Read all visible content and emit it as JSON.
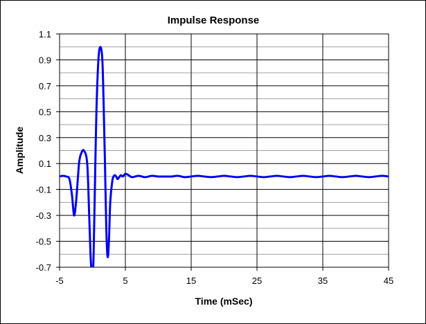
{
  "chart_data": {
    "type": "line",
    "title": "Impulse  Response",
    "xlabel": "Time (mSec)",
    "ylabel": "Amplitude",
    "xlim": [
      -5,
      45
    ],
    "ylim": [
      -0.7,
      1.1
    ],
    "x_ticks": [
      "-5",
      "5",
      "15",
      "25",
      "35",
      "45"
    ],
    "y_ticks": [
      "1.1",
      "0.9",
      "0.7",
      "0.5",
      "0.3",
      "0.1",
      "-0.1",
      "-0.3",
      "-0.5",
      "-0.7"
    ],
    "grid": true,
    "legend": "none",
    "series_color": "#0000ee",
    "series": [
      {
        "x": [
          -5,
          -4.5,
          -4,
          -3.5,
          -3.1,
          -2.8,
          -2.5,
          -2.2,
          -2.0,
          -1.7,
          -1.3,
          -0.8,
          -0.5,
          -0.3,
          -0.1,
          0.1,
          0.25,
          0.4,
          0.6,
          0.9,
          1.2,
          1.5,
          1.7,
          1.9,
          2.1,
          2.3,
          2.5,
          2.7,
          3.0,
          3.2,
          3.4,
          3.6,
          3.8,
          4.0,
          4.3,
          4.6,
          5.0,
          5.5,
          6.0,
          7.0,
          8.0,
          9.0,
          10,
          11,
          12,
          13,
          14,
          15,
          16,
          17,
          18,
          19,
          20,
          21,
          22,
          23,
          24,
          25,
          26,
          27,
          28,
          29,
          30,
          31,
          32,
          33,
          34,
          35,
          36,
          37,
          38,
          39,
          40,
          41,
          42,
          43,
          44,
          45
        ],
        "y": [
          0.0,
          0.005,
          0.0,
          -0.02,
          -0.15,
          -0.3,
          -0.2,
          0.0,
          0.12,
          0.18,
          0.2,
          0.1,
          -0.3,
          -0.6,
          -0.75,
          -0.72,
          -0.4,
          0.0,
          0.5,
          0.9,
          1.0,
          0.9,
          0.55,
          0.1,
          -0.4,
          -0.62,
          -0.5,
          -0.2,
          -0.04,
          0.0,
          0.01,
          0.0,
          -0.02,
          -0.01,
          0.01,
          0.0,
          0.02,
          0.01,
          -0.005,
          0.005,
          -0.005,
          0.005,
          0.0,
          0.0,
          0.0,
          0.005,
          -0.005,
          0.0,
          0.005,
          0.0,
          -0.005,
          0.0,
          0.005,
          0.0,
          -0.005,
          0.0,
          0.005,
          0.0,
          -0.005,
          0.0,
          0.005,
          0.0,
          -0.005,
          0.0,
          0.005,
          0.0,
          -0.005,
          0.0,
          0.005,
          0.0,
          -0.005,
          0.0,
          0.005,
          0.0,
          -0.005,
          0.0,
          0.005,
          0.0
        ]
      }
    ]
  }
}
